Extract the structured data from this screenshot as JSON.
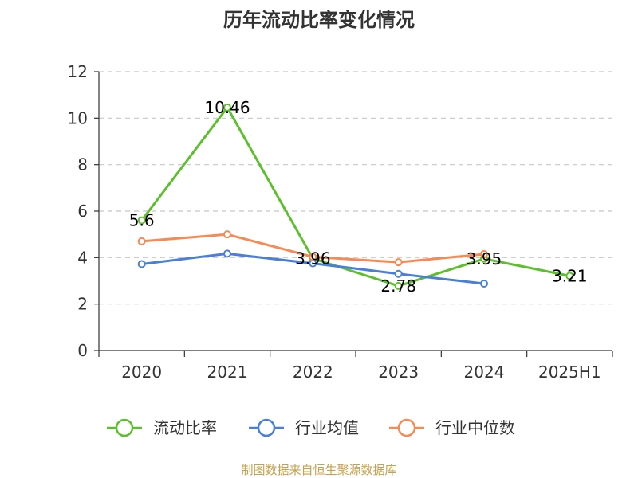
{
  "chart_data": {
    "type": "line",
    "title": "历年流动比率变化情况",
    "categories": [
      "2020",
      "2021",
      "2022",
      "2023",
      "2024",
      "2025H1"
    ],
    "ylim": [
      0,
      12
    ],
    "yticks": [
      0,
      2,
      4,
      6,
      8,
      10,
      12
    ],
    "grid": true,
    "legend_position": "bottom",
    "series": [
      {
        "name": "流动比率",
        "color": "#5dbf2d",
        "values": [
          5.6,
          10.46,
          3.96,
          2.78,
          3.95,
          3.21
        ],
        "labels": [
          "5.6",
          "10.46",
          "3.96",
          "2.78",
          "3.95",
          "3.21"
        ]
      },
      {
        "name": "行业均值",
        "color": "#4a7fd6",
        "values": [
          3.72,
          4.17,
          3.75,
          3.3,
          2.88,
          null
        ]
      },
      {
        "name": "行业中位数",
        "color": "#f58a55",
        "values": [
          4.7,
          5.0,
          4.03,
          3.8,
          4.15,
          null
        ]
      }
    ],
    "source": "制图数据来自恒生聚源数据库"
  }
}
